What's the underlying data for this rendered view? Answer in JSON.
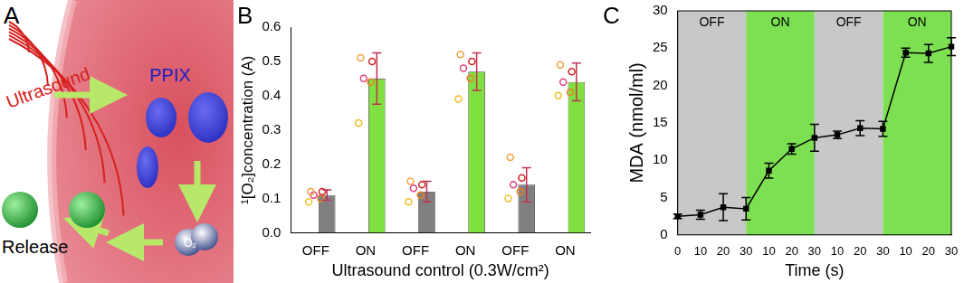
{
  "diagram": {
    "panel_label": "A",
    "labels": {
      "carrier": "PPIX",
      "wave": "Ultrasound",
      "release": "Release",
      "molecule": "O₂"
    }
  },
  "chart_data": [
    {
      "type": "bar",
      "panel_label": "B",
      "x_label": "Ultrasound control (0.3W/cm²)",
      "y_label": "¹[O₂]concentration (A)",
      "categories": [
        "OFF",
        "ON",
        "OFF",
        "ON",
        "OFF",
        "ON"
      ],
      "values": [
        0.11,
        0.45,
        0.12,
        0.47,
        0.14,
        0.44
      ],
      "errors": [
        0.015,
        0.075,
        0.03,
        0.055,
        0.05,
        0.055
      ],
      "points": [
        [
          0.09,
          0.1,
          0.11,
          0.12,
          0.12
        ],
        [
          0.32,
          0.44,
          0.45,
          0.5,
          0.51
        ],
        [
          0.09,
          0.11,
          0.13,
          0.14,
          0.15
        ],
        [
          0.39,
          0.45,
          0.48,
          0.5,
          0.52
        ],
        [
          0.1,
          0.12,
          0.14,
          0.16,
          0.22
        ],
        [
          0.4,
          0.41,
          0.44,
          0.47,
          0.49
        ]
      ],
      "colors": [
        "#808080",
        "#80e040",
        "#808080",
        "#80e040",
        "#808080",
        "#80e040"
      ],
      "ylim": [
        0,
        0.6
      ],
      "yticks": [
        {
          "value": 0,
          "label": "0.0"
        },
        0.1,
        0.2,
        0.3,
        0.4,
        0.5,
        0.6
      ],
      "grid": false
    },
    {
      "type": "line",
      "panel_label": "C",
      "x_label": "Time (s)",
      "y_label": "MDA (nmol/ml)",
      "categories": [
        "0",
        "10",
        "20",
        "30",
        "10",
        "20",
        "30",
        "10",
        "20",
        "30",
        "10",
        "20",
        "30"
      ],
      "values": [
        2.5,
        2.7,
        3.7,
        3.5,
        8.6,
        11.5,
        13.0,
        13.4,
        14.3,
        14.2,
        24.4,
        24.3,
        25.2
      ],
      "errors": [
        0.3,
        0.6,
        1.8,
        1.5,
        1.0,
        0.7,
        1.8,
        0.5,
        1.0,
        1.0,
        0.6,
        1.2,
        1.2
      ],
      "color": "#000000",
      "marker": "square",
      "spans": [
        {
          "label": "OFF",
          "start": 0,
          "end": 3,
          "color": "#c8c8c8"
        },
        {
          "label": "ON",
          "start": 3,
          "end": 6,
          "color": "#7de052"
        },
        {
          "label": "OFF",
          "start": 6,
          "end": 9,
          "color": "#c8c8c8"
        },
        {
          "label": "ON",
          "start": 9,
          "end": 12,
          "color": "#7de052"
        }
      ],
      "ylim": [
        0,
        30
      ],
      "yticks": [
        0,
        5,
        10,
        15,
        20,
        25,
        30
      ],
      "grid": false
    }
  ]
}
